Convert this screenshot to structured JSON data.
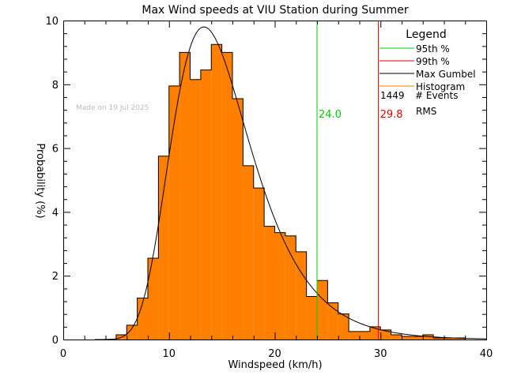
{
  "chart_data": {
    "type": "bar",
    "title": "Max Wind speeds at VIU Station during Summer",
    "xlabel": "Windspeed (km/h)",
    "ylabel": "Probability (%)",
    "xlim": [
      0,
      40
    ],
    "ylim": [
      0,
      10
    ],
    "x_ticks": [
      "0",
      "10",
      "20",
      "30",
      "40"
    ],
    "y_ticks": [
      "0",
      "2",
      "4",
      "6",
      "8",
      "10"
    ],
    "grid": false,
    "legend_position": "top-right",
    "watermark": "Made on 19 Jul 2025",
    "legend": {
      "title": "Legend",
      "entries": [
        {
          "label": "95th %",
          "color": "#00cc00"
        },
        {
          "label": "99th %",
          "color": "#dd0000"
        },
        {
          "label": "Max Gumbel",
          "color": "#000000"
        },
        {
          "label": "Histogram",
          "color": "#ff8000"
        }
      ],
      "events_count": "1449",
      "events_label": "# Events",
      "rms_label": "RMS"
    },
    "histogram": {
      "color": "#ff8000",
      "bin_edges": [
        5,
        6,
        7,
        8,
        9,
        10,
        11,
        12,
        13,
        14,
        15,
        16,
        17,
        18,
        19,
        20,
        21,
        22,
        23,
        24,
        25,
        26,
        27,
        28,
        29,
        30,
        31,
        32,
        33,
        34,
        35,
        36,
        37,
        38
      ],
      "values": [
        0.15,
        0.45,
        1.3,
        2.55,
        5.75,
        7.95,
        9.0,
        8.15,
        8.45,
        9.25,
        9.0,
        7.55,
        5.45,
        4.75,
        3.55,
        3.35,
        3.25,
        2.75,
        1.35,
        1.85,
        1.15,
        0.8,
        0.25,
        0.25,
        0.4,
        0.3,
        0.15,
        0.1,
        0.1,
        0.15,
        0.05,
        0.05,
        0.05
      ]
    },
    "gumbel_curve": {
      "color": "#000000",
      "mode": 13.3,
      "scale": 3.75,
      "peak": 9.8
    },
    "percentile_95": {
      "value": 24.0,
      "label": "24.0",
      "color": "#00cc00"
    },
    "percentile_99": {
      "value": 29.8,
      "label": "29.8",
      "color": "#dd0000"
    }
  }
}
